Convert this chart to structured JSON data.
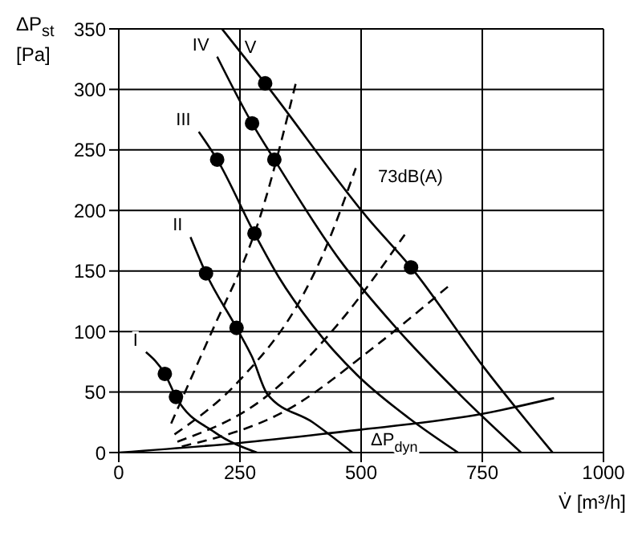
{
  "chart_data": {
    "type": "line",
    "xlabel": "V̇ [m³/h]",
    "ylabel": "ΔP$_{st}$ [Pa]",
    "xlim": [
      0,
      1000
    ],
    "ylim": [
      0,
      350
    ],
    "xticks": [
      0,
      250,
      500,
      750,
      1000
    ],
    "yticks": [
      0,
      50,
      100,
      150,
      200,
      250,
      300,
      350
    ],
    "grid": true,
    "series": [
      {
        "name": "I",
        "color": "#000000",
        "x": [
          56,
          95,
          118,
          197,
          285
        ],
        "values": [
          83,
          65,
          46,
          17,
          0
        ]
      },
      {
        "name": "II",
        "color": "#000000",
        "x": [
          148,
          180,
          243,
          275,
          307,
          400,
          482
        ],
        "values": [
          178,
          148,
          103,
          79,
          48,
          25,
          0
        ]
      },
      {
        "name": "III",
        "color": "#000000",
        "x": [
          165,
          203,
          280,
          330,
          400,
          492,
          600,
          700
        ],
        "values": [
          265,
          242,
          181,
          145,
          105,
          64,
          28,
          0
        ]
      },
      {
        "name": "IV",
        "color": "#000000",
        "x": [
          203,
          275,
          321,
          456,
          570,
          711,
          830
        ],
        "values": [
          327,
          272,
          242,
          159,
          104,
          45,
          0
        ]
      },
      {
        "name": "V",
        "color": "#000000",
        "x": [
          213,
          302,
          515,
          603,
          754,
          895
        ],
        "values": [
          350,
          305,
          193,
          153,
          70,
          0
        ]
      },
      {
        "color": "#000000",
        "line_style": "dashed",
        "x": [
          108,
          200,
          259,
          280,
          367
        ],
        "values": [
          24,
          107,
          159,
          181,
          308
        ]
      },
      {
        "color": "#000000",
        "line_style": "dashed",
        "x": [
          115,
          250,
          380,
          416,
          489
        ],
        "values": [
          15,
          60,
          130,
          159,
          235
        ]
      },
      {
        "color": "#000000",
        "line_style": "dashed",
        "x": [
          121,
          300,
          450,
          590
        ],
        "values": [
          9,
          45,
          105,
          180
        ]
      },
      {
        "color": "#000000",
        "line_style": "dashed",
        "x": [
          130,
          351,
          520,
          679
        ],
        "values": [
          5,
          36,
          85,
          137
        ]
      },
      {
        "color": "#000000",
        "x": [
          0,
          250,
          500,
          590,
          750,
          898
        ],
        "values": [
          0,
          8,
          19,
          23,
          32,
          45
        ]
      },
      {
        "type": "scatter",
        "color": "#000000",
        "x": [
          95,
          118,
          180,
          243,
          203,
          280,
          275,
          321,
          302,
          603
        ],
        "values": [
          65,
          46,
          148,
          103,
          242,
          181,
          272,
          242,
          305,
          153
        ]
      }
    ],
    "annotations": [
      {
        "text": "73dB(A)",
        "x": 515,
        "y": 193
      },
      {
        "text": "ΔP$_{dyn}$",
        "x": 500,
        "y": 19
      }
    ]
  }
}
